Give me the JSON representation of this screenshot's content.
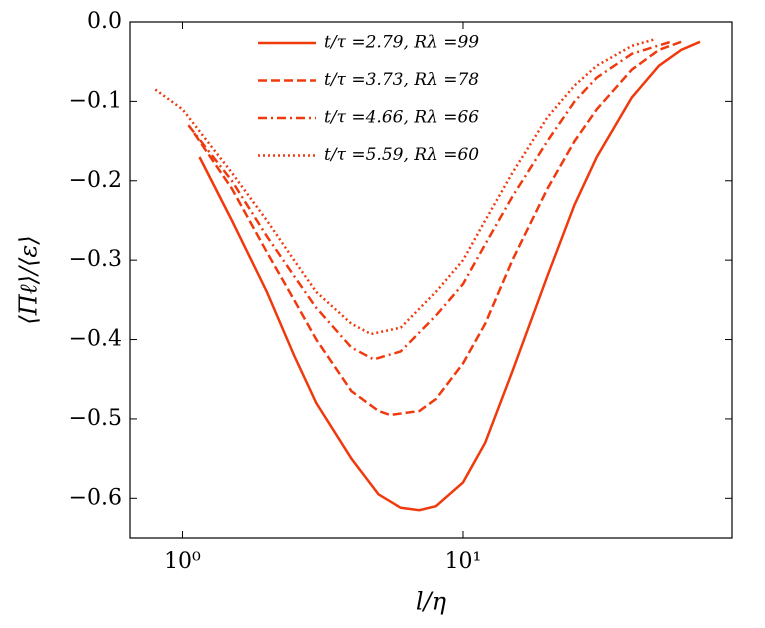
{
  "chart_data": {
    "type": "line",
    "xlabel": "l/η",
    "ylabel": "⟨Πℓ⟩/⟨ε⟩",
    "xscale": "log",
    "xlim": [
      0.65,
      91
    ],
    "xticks": [
      {
        "value": 1,
        "label": "10⁰"
      },
      {
        "value": 10,
        "label": "10¹"
      }
    ],
    "ylim": [
      -0.65,
      0
    ],
    "yticks": [
      {
        "value": 0,
        "label": "0.0"
      },
      {
        "value": -0.1,
        "label": "−0.1"
      },
      {
        "value": -0.2,
        "label": "−0.2"
      },
      {
        "value": -0.3,
        "label": "−0.3"
      },
      {
        "value": -0.4,
        "label": "−0.4"
      },
      {
        "value": -0.5,
        "label": "−0.5"
      },
      {
        "value": -0.6,
        "label": "−0.6"
      }
    ],
    "legend": "upper center",
    "series": [
      {
        "name": "t/τ =2.79, Rλ =99",
        "color": "#f03a0e",
        "dash": "solid",
        "x": [
          1.15,
          1.5,
          2,
          2.5,
          3,
          4,
          5,
          6,
          7,
          8,
          10,
          12,
          15,
          20,
          25,
          30,
          40,
          50,
          60,
          70
        ],
        "values": [
          -0.17,
          -0.25,
          -0.34,
          -0.42,
          -0.48,
          -0.55,
          -0.595,
          -0.612,
          -0.615,
          -0.61,
          -0.58,
          -0.53,
          -0.44,
          -0.32,
          -0.23,
          -0.17,
          -0.095,
          -0.055,
          -0.035,
          -0.025
        ]
      },
      {
        "name": "t/τ =3.73, Rλ =78",
        "color": "#f03a0e",
        "dash": "dashed",
        "x": [
          1.1,
          1.5,
          2,
          2.5,
          3,
          4,
          5,
          5.5,
          7,
          8,
          10,
          12,
          15,
          20,
          25,
          30,
          40,
          50,
          60
        ],
        "values": [
          -0.14,
          -0.21,
          -0.29,
          -0.35,
          -0.4,
          -0.465,
          -0.49,
          -0.495,
          -0.49,
          -0.475,
          -0.43,
          -0.38,
          -0.3,
          -0.21,
          -0.15,
          -0.11,
          -0.06,
          -0.035,
          -0.025
        ]
      },
      {
        "name": "t/τ =4.66, Rλ =66",
        "color": "#f03a0e",
        "dash": "dashdot",
        "x": [
          1.05,
          1.5,
          2,
          2.5,
          3,
          4,
          4.8,
          6,
          8,
          10,
          12,
          15,
          20,
          25,
          30,
          40,
          55
        ],
        "values": [
          -0.13,
          -0.2,
          -0.27,
          -0.32,
          -0.36,
          -0.41,
          -0.425,
          -0.415,
          -0.37,
          -0.33,
          -0.28,
          -0.22,
          -0.15,
          -0.1,
          -0.07,
          -0.04,
          -0.025
        ]
      },
      {
        "name": "t/τ =5.59, Rλ =60",
        "color": "#f03a0e",
        "dash": "dotted",
        "x": [
          0.8,
          1,
          1.5,
          2,
          2.5,
          3,
          4,
          4.7,
          6,
          8,
          10,
          12,
          15,
          20,
          25,
          30,
          40,
          48
        ],
        "values": [
          -0.085,
          -0.11,
          -0.19,
          -0.25,
          -0.3,
          -0.34,
          -0.38,
          -0.393,
          -0.385,
          -0.34,
          -0.3,
          -0.25,
          -0.19,
          -0.12,
          -0.08,
          -0.055,
          -0.03,
          -0.022
        ]
      }
    ]
  }
}
